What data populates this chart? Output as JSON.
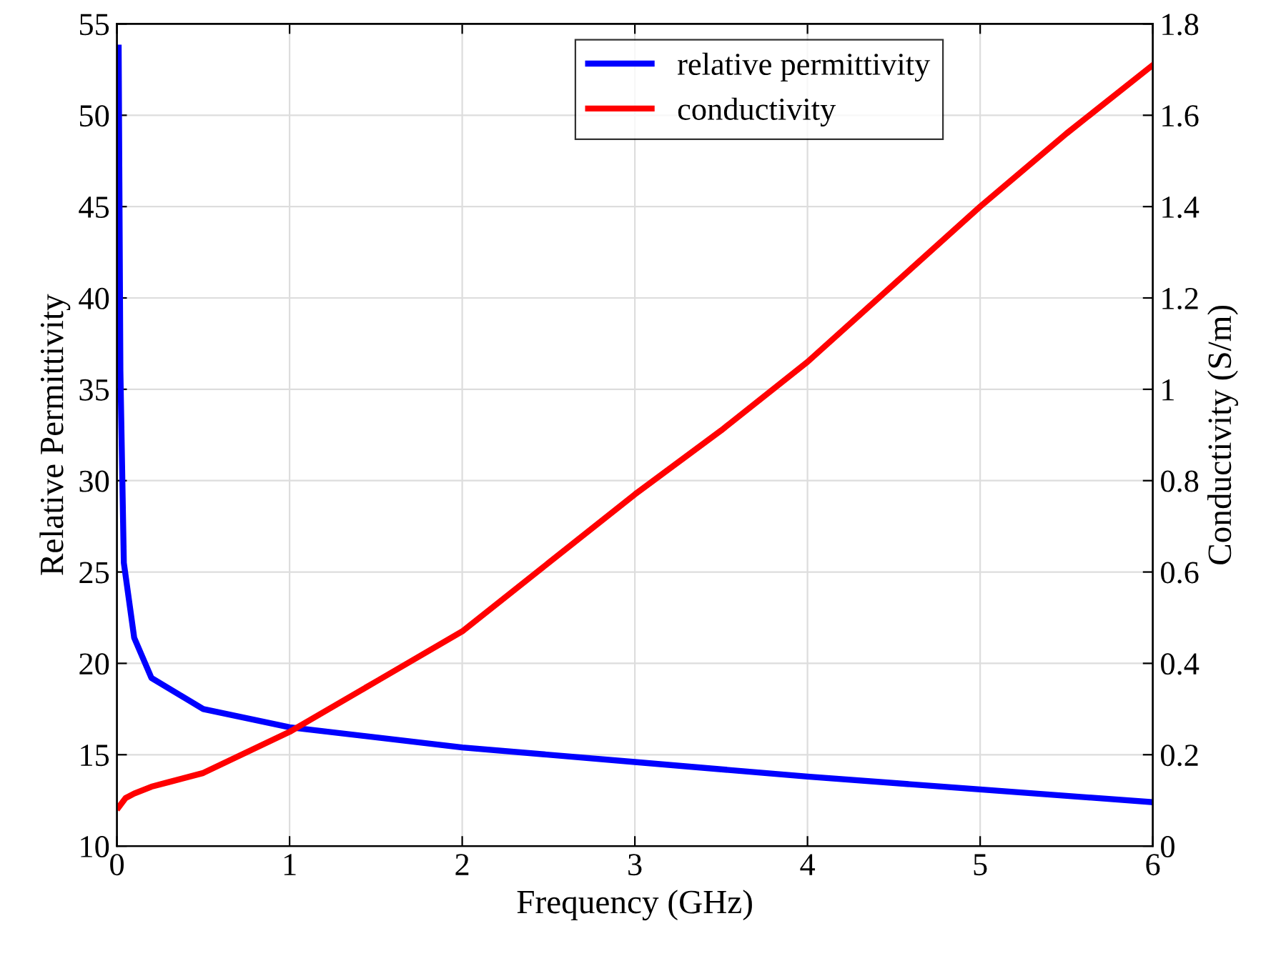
{
  "chart_data": {
    "type": "line",
    "xlabel": "Frequency (GHz)",
    "ylabel": "Relative Permittivity",
    "y2label": "Conductivity (S/m)",
    "xlim": [
      0,
      6
    ],
    "xticks": [
      0,
      1,
      2,
      3,
      4,
      5,
      6
    ],
    "ylim": [
      10,
      55
    ],
    "yticks": [
      10,
      15,
      20,
      25,
      30,
      35,
      40,
      45,
      50,
      55
    ],
    "y2lim": [
      0,
      1.8
    ],
    "y2ticks": [
      0,
      0.2,
      0.4,
      0.6,
      0.8,
      1,
      1.2,
      1.4,
      1.6,
      1.8
    ],
    "grid": true,
    "legend": "top",
    "line_style": "solid",
    "series": [
      {
        "name": "relative permittivity",
        "color": "#0000ff",
        "x": [
          0.01,
          0.02,
          0.04,
          0.1,
          0.2,
          0.5,
          1,
          2,
          3,
          4,
          5,
          6
        ],
        "values": [
          53.7,
          36,
          25.5,
          21.4,
          19.2,
          17.5,
          16.5,
          15.4,
          14.6,
          13.8,
          13.1,
          12.4
        ]
      },
      {
        "name": "conductivity",
        "color": "#ff0000",
        "axis": "y2",
        "x": [
          0.01,
          0.05,
          0.1,
          0.2,
          0.3,
          0.5,
          1,
          1.5,
          2,
          2.5,
          3,
          3.5,
          4,
          4.5,
          5,
          5.5,
          6
        ],
        "values": [
          0.085,
          0.105,
          0.115,
          0.13,
          0.14,
          0.16,
          0.25,
          0.36,
          0.47,
          0.62,
          0.77,
          0.91,
          1.06,
          1.23,
          1.4,
          1.56,
          1.71
        ]
      }
    ]
  }
}
